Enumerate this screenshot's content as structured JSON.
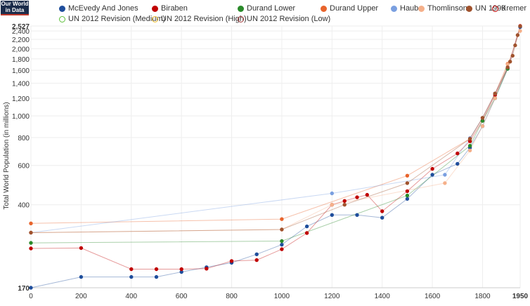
{
  "logo": {
    "line1": "Our World",
    "line2": "in Data"
  },
  "chart_data": {
    "type": "line",
    "ylabel": "Total World Population (in millions)",
    "xlim": [
      0,
      1950
    ],
    "ylim": [
      170,
      2527
    ],
    "y_scale": "log",
    "grid": true,
    "legend_placement": "top",
    "x_ticks": [
      "0",
      "200",
      "400",
      "600",
      "800",
      "1000",
      "1200",
      "1400",
      "1600",
      "1800",
      "1950"
    ],
    "y_ticks": [
      "170",
      "400",
      "600",
      "800",
      "1,000",
      "1,200",
      "1,400",
      "1,600",
      "1,800",
      "2,000",
      "2,200",
      "2,400",
      "2,527"
    ],
    "x_tick_values": [
      0,
      200,
      400,
      600,
      800,
      1000,
      1200,
      1400,
      1600,
      1800,
      1950
    ],
    "y_tick_values": [
      170,
      400,
      600,
      800,
      1000,
      1200,
      1400,
      1600,
      1800,
      2000,
      2200,
      2400,
      2527
    ],
    "series": [
      {
        "name": "McEvedy And Jones",
        "color": "#1f4e9c",
        "filled": true,
        "x": [
          0,
          200,
          400,
          500,
          600,
          700,
          800,
          900,
          1000,
          1100,
          1200,
          1300,
          1400,
          1500,
          1600,
          1700,
          1750,
          1800,
          1850,
          1900,
          1950
        ],
        "y": [
          170,
          190,
          190,
          190,
          200,
          210,
          220,
          240,
          265,
          320,
          360,
          360,
          350,
          425,
          545,
          610,
          720,
          900,
          1200,
          1625,
          2500
        ]
      },
      {
        "name": "Biraben",
        "color": "#c00000",
        "filled": true,
        "x": [
          0,
          200,
          400,
          500,
          600,
          700,
          800,
          900,
          1000,
          1100,
          1200,
          1250,
          1300,
          1340,
          1400,
          1500,
          1600,
          1700,
          1750,
          1800,
          1850,
          1900,
          1950
        ],
        "y": [
          255,
          256,
          206,
          206,
          206,
          207,
          224,
          226,
          253,
          299,
          400,
          416,
          432,
          443,
          374,
          460,
          579,
          679,
          770,
          954,
          1241,
          1633,
          2527
        ]
      },
      {
        "name": "Durand Lower",
        "color": "#2a8a2a",
        "filled": true,
        "x": [
          0,
          1000,
          1500,
          1750,
          1800,
          1850,
          1900
        ],
        "y": [
          270,
          275,
          440,
          735,
          950,
          1200,
          1625
        ]
      },
      {
        "name": "Durand Upper",
        "color": "#e8642c",
        "filled": true,
        "x": [
          0,
          1000,
          1500,
          1750,
          1800,
          1850,
          1900
        ],
        "y": [
          330,
          345,
          540,
          790,
          980,
          1260,
          1710
        ]
      },
      {
        "name": "Haub",
        "color": "#7a9fe0",
        "filled": true,
        "x": [
          0,
          1200,
          1650,
          1750,
          1800,
          1850,
          1900
        ],
        "y": [
          300,
          450,
          545,
          795,
          980,
          1260,
          1650
        ]
      },
      {
        "name": "Thomlinson",
        "color": "#f5b08a",
        "filled": true,
        "x": [
          0,
          1000,
          1200,
          1650,
          1750,
          1800,
          1850,
          1900,
          1950
        ],
        "y": [
          300,
          310,
          400,
          500,
          700,
          900,
          1200,
          1700,
          2400
        ]
      },
      {
        "name": "UN 1999",
        "color": "#a0522d",
        "filled": true,
        "x": [
          0,
          1000,
          1250,
          1500,
          1750,
          1800,
          1850,
          1900,
          1910,
          1920,
          1930,
          1940,
          1950
        ],
        "y": [
          300,
          310,
          400,
          500,
          790,
          980,
          1260,
          1650,
          1750,
          1860,
          2070,
          2300,
          2520
        ]
      },
      {
        "name": "Kremer",
        "color": "#c00000",
        "filled": false,
        "x": [],
        "y": []
      },
      {
        "name": "UN 2012 Revision (Medium)",
        "color": "#5cbf3a",
        "filled": false,
        "x": [],
        "y": []
      },
      {
        "name": "UN 2012 Revision (High)",
        "color": "#f2c232",
        "filled": false,
        "x": [],
        "y": []
      },
      {
        "name": "UN 2012 Revision (Low)",
        "color": "#a33a3a",
        "filled": false,
        "x": [],
        "y": []
      }
    ]
  }
}
